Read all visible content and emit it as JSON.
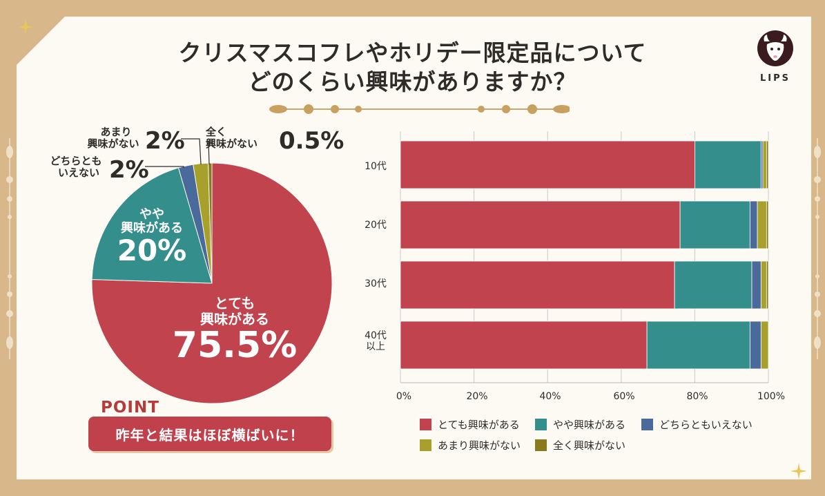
{
  "title": {
    "line1": "クリスマスコフレやホリデー限定品について",
    "line2": "どのくらい興味がありますか？"
  },
  "logo": {
    "text": "LIPS",
    "icon": "deer-logo-icon"
  },
  "colors": {
    "very": "#c0434d",
    "some": "#348f8c",
    "neutral": "#4a6a9c",
    "notmuch": "#a8a02c",
    "none": "#8a7a1e",
    "background": "#fcfaf3",
    "frame": "#d8b88a"
  },
  "pie": {
    "slices": [
      {
        "key": "very",
        "value": 75.5
      },
      {
        "key": "some",
        "value": 20
      },
      {
        "key": "neutral",
        "value": 2
      },
      {
        "key": "notmuch",
        "value": 2
      },
      {
        "key": "none",
        "value": 0.5
      }
    ],
    "labels": {
      "very_top": "とても",
      "very_bottom": "興味がある",
      "very_pct": "75.5%",
      "some_top": "やや",
      "some_bottom": "興味がある",
      "some_pct": "20%",
      "neutral_top": "どちらとも",
      "neutral_bottom": "いえない",
      "neutral_pct": "2%",
      "notmuch_top": "あまり",
      "notmuch_bottom": "興味がない",
      "notmuch_pct": "2%",
      "none_top": "全く",
      "none_bottom": "興味がない",
      "none_pct": "0.5%"
    }
  },
  "point": {
    "label": "POINT",
    "text": "昨年と結果はほぼ横ばいに！"
  },
  "chart_data": {
    "type": "bar",
    "orientation": "horizontal-stacked-100",
    "categories": [
      "10代",
      "20代",
      "30代",
      "40代以上"
    ],
    "category_lines": [
      [
        "10代"
      ],
      [
        "20代"
      ],
      [
        "30代"
      ],
      [
        "40代",
        "以上"
      ]
    ],
    "series": [
      {
        "name": "とても興味がある",
        "key": "very",
        "values": [
          80,
          76,
          74.5,
          67
        ]
      },
      {
        "name": "やや興味がある",
        "key": "some",
        "values": [
          18,
          19,
          21,
          28
        ]
      },
      {
        "name": "どちらともいえない",
        "key": "neutral",
        "values": [
          0.5,
          2,
          2.5,
          3
        ]
      },
      {
        "name": "あまり興味がない",
        "key": "notmuch",
        "values": [
          1,
          2.5,
          1.5,
          2
        ]
      },
      {
        "name": "全く興味がない",
        "key": "none",
        "values": [
          0.5,
          0.5,
          0.5,
          0
        ]
      }
    ],
    "xticks": [
      "0%",
      "20%",
      "40%",
      "60%",
      "80%",
      "100%"
    ],
    "xlim": [
      0,
      100
    ],
    "grid": true,
    "legend": [
      "とても興味がある",
      "やや興味がある",
      "どちらともいえない",
      "あまり興味がない",
      "全く興味がない"
    ],
    "legend_position": "bottom"
  }
}
